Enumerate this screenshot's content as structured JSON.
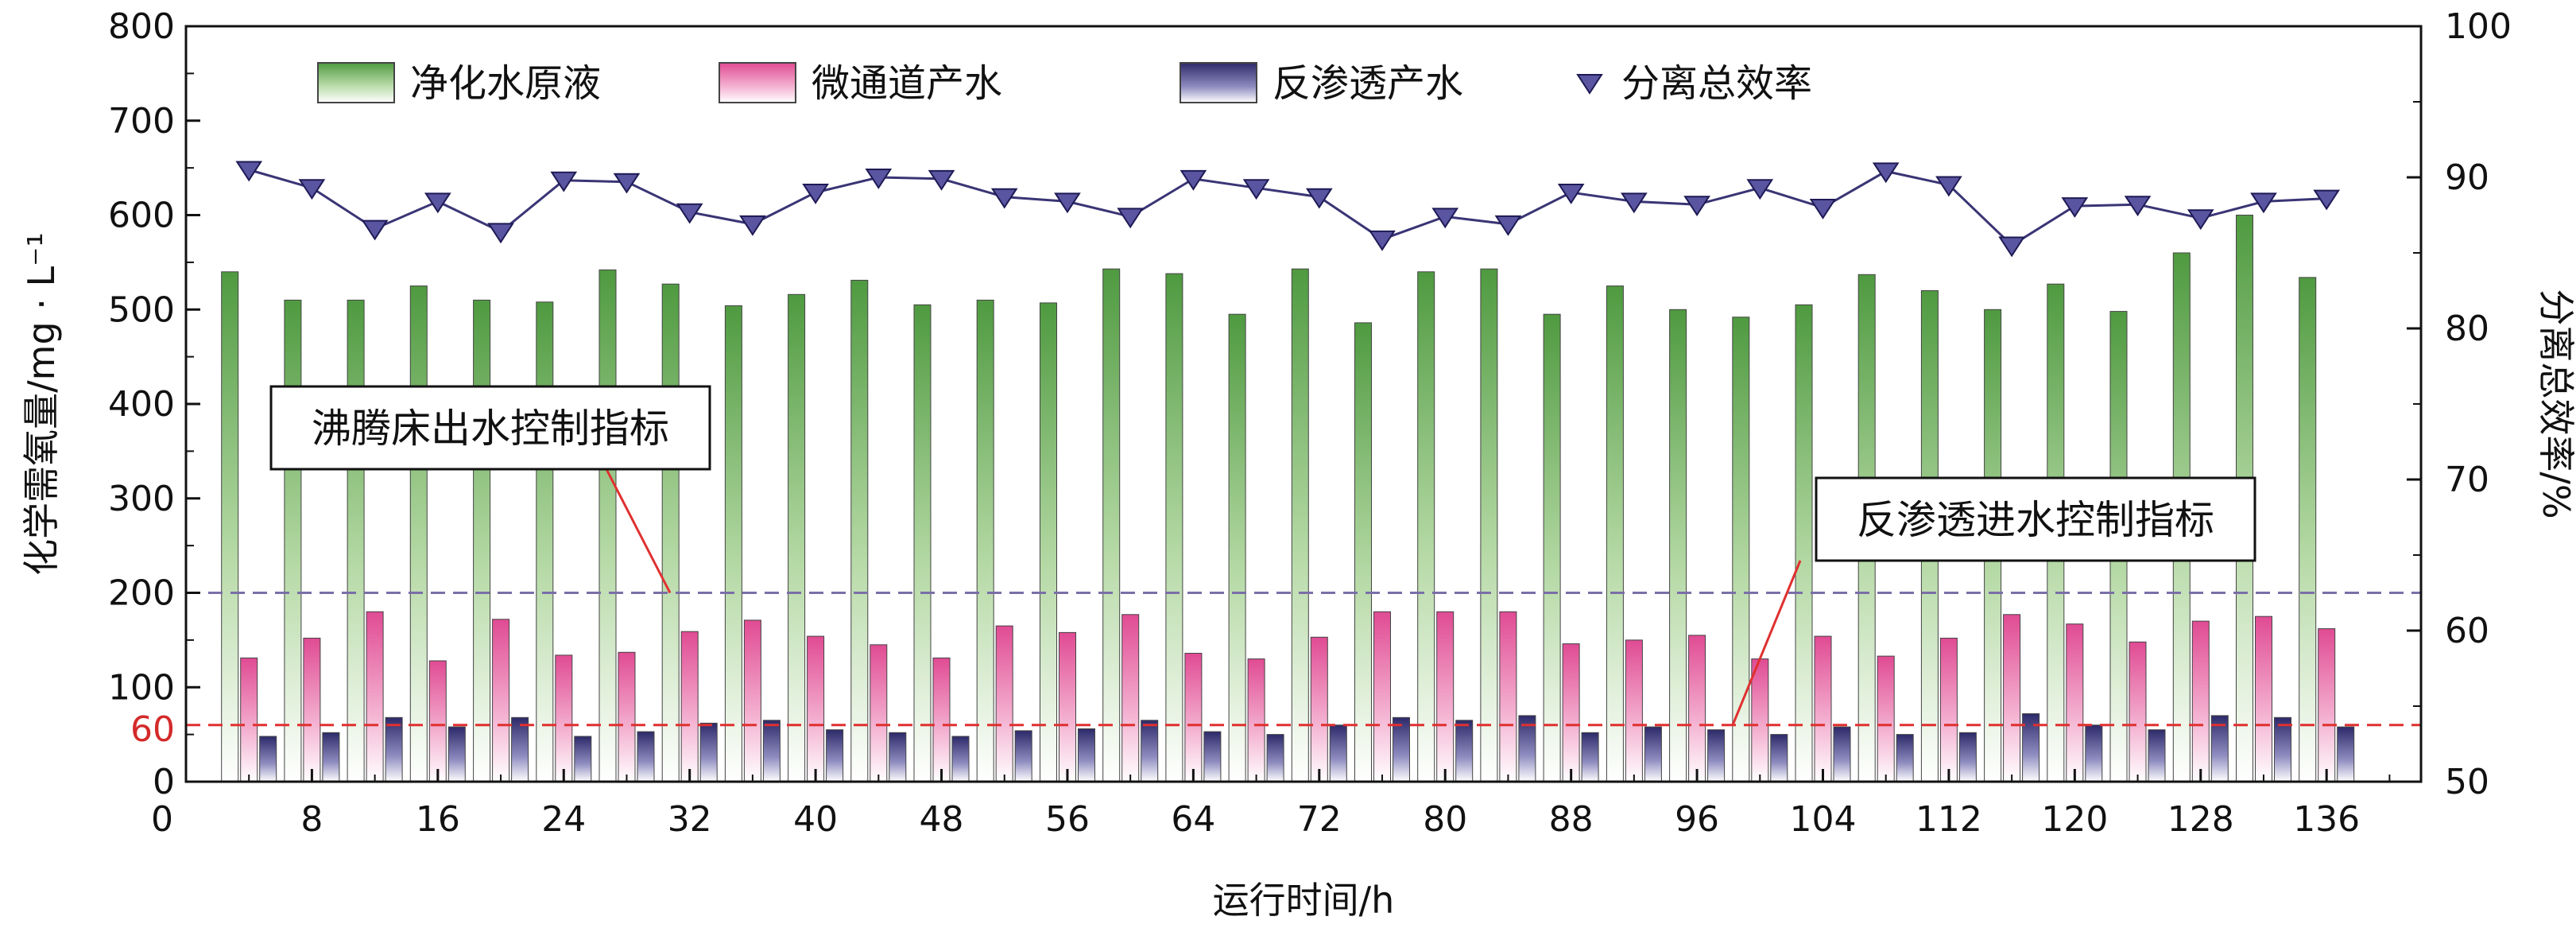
{
  "chart_data": {
    "type": "bar",
    "x": [
      4,
      8,
      12,
      16,
      20,
      24,
      28,
      32,
      36,
      40,
      44,
      48,
      52,
      56,
      60,
      64,
      68,
      72,
      76,
      80,
      84,
      88,
      92,
      96,
      100,
      104,
      108,
      112,
      116,
      120,
      124,
      128,
      132,
      136
    ],
    "x_ticks": [
      "0",
      "8",
      "16",
      "24",
      "32",
      "40",
      "48",
      "56",
      "64",
      "72",
      "80",
      "88",
      "96",
      "104",
      "112",
      "120",
      "128",
      "136"
    ],
    "xlabel": "运行时间/h",
    "ylabel_left": "化学需氧量/mg · L⁻¹",
    "ylabel_right": "分离总效率/%",
    "ylim_left": [
      0,
      800
    ],
    "ylim_right": [
      50,
      100
    ],
    "y_ticks_left": [
      "0",
      "100",
      "200",
      "300",
      "400",
      "500",
      "600",
      "700",
      "800"
    ],
    "y_ticks_right": [
      "50",
      "60",
      "70",
      "80",
      "90",
      "100"
    ],
    "extra_tick_60": "60",
    "series": [
      {
        "name": "净化水原液",
        "type": "bar",
        "color": "#5aa84a",
        "values": [
          540,
          510,
          510,
          525,
          510,
          508,
          542,
          527,
          504,
          516,
          531,
          505,
          510,
          507,
          543,
          538,
          495,
          543,
          486,
          540,
          543,
          495,
          525,
          500,
          492,
          505,
          537,
          520,
          500,
          527,
          498,
          560,
          600,
          534
        ]
      },
      {
        "name": "微通道产水",
        "type": "bar",
        "color": "#e0589a",
        "values": [
          131,
          152,
          180,
          128,
          172,
          134,
          137,
          159,
          171,
          154,
          145,
          131,
          165,
          158,
          177,
          136,
          130,
          153,
          180,
          180,
          180,
          146,
          150,
          155,
          130,
          154,
          133,
          152,
          177,
          167,
          148,
          170,
          175,
          162
        ]
      },
      {
        "name": "反渗透产水",
        "type": "bar",
        "color": "#3a3575",
        "values": [
          48,
          52,
          68,
          58,
          68,
          48,
          53,
          62,
          65,
          55,
          52,
          48,
          54,
          56,
          65,
          53,
          50,
          60,
          68,
          65,
          70,
          52,
          58,
          55,
          50,
          58,
          50,
          52,
          72,
          60,
          55,
          70,
          68,
          58
        ]
      },
      {
        "name": "分离总效率",
        "type": "line",
        "axis": "right",
        "color": "#3a3575",
        "values": [
          90.5,
          89.3,
          86.6,
          88.4,
          86.4,
          89.8,
          89.7,
          87.7,
          86.9,
          89.0,
          90.0,
          89.9,
          88.7,
          88.4,
          87.4,
          89.9,
          89.3,
          88.7,
          85.9,
          87.4,
          86.9,
          89.0,
          88.4,
          88.2,
          89.3,
          88.0,
          90.4,
          89.5,
          85.5,
          88.1,
          88.2,
          87.3,
          88.4,
          88.6
        ]
      }
    ],
    "reference_lines": [
      {
        "value": 200,
        "color": "#7a6fa8",
        "style": "dashed",
        "label": "沸腾床出水控制指标"
      },
      {
        "value": 60,
        "color": "#e03030",
        "style": "dashed",
        "label": "反渗透进水控制指标"
      }
    ],
    "legend_position": "top",
    "grid": false
  }
}
